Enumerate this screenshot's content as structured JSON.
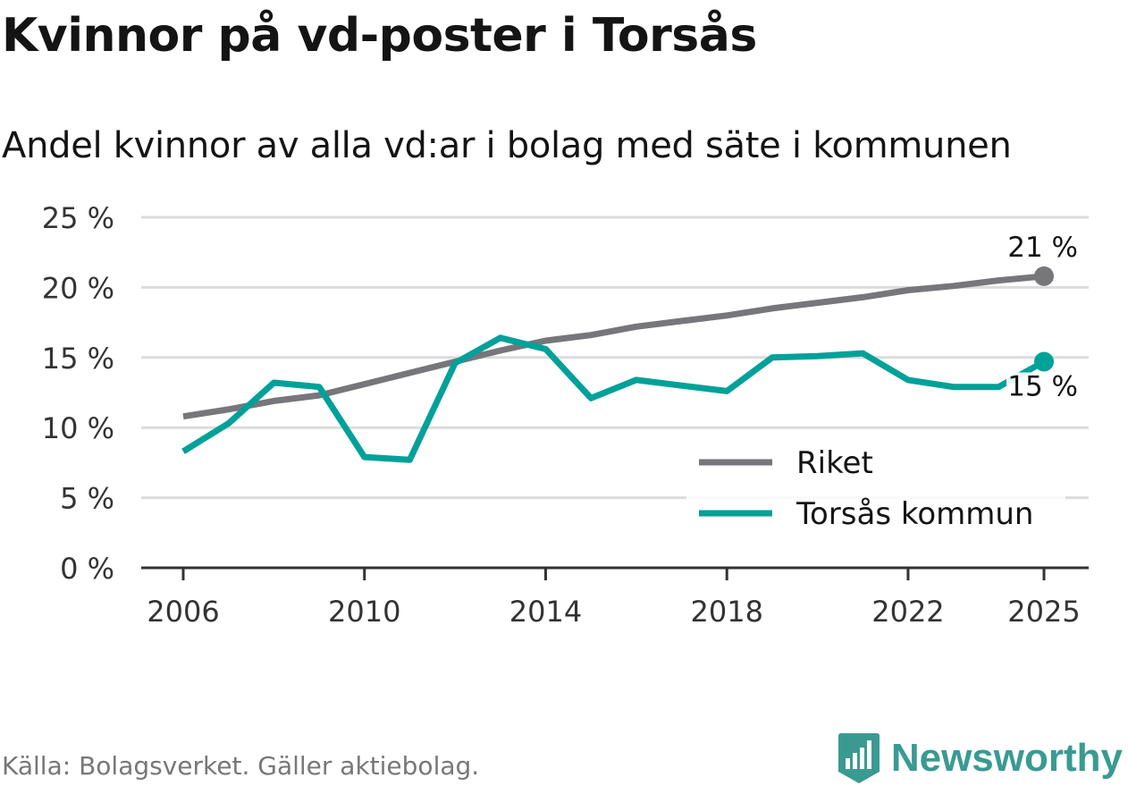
{
  "header": {
    "title": "Kvinnor på vd-poster i Torsås",
    "subtitle": "Andel kvinnor av alla vd:ar i bolag med säte i kommunen"
  },
  "footer": {
    "source": "Källa: Bolagsverket. Gäller aktiebolag.",
    "brand": "Newsworthy"
  },
  "colors": {
    "riket": "#76767b",
    "kommun": "#00a199",
    "grid": "#dcdcdc",
    "axis": "#333333",
    "brand": "#3a9a92"
  },
  "icons": {
    "logo": "bar-chart-badge-icon"
  },
  "chart_data": {
    "type": "line",
    "title": "Kvinnor på vd-poster i Torsås",
    "subtitle": "Andel kvinnor av alla vd:ar i bolag med säte i kommunen",
    "xlabel": "",
    "ylabel": "",
    "xlim": [
      2006,
      2025
    ],
    "ylim": [
      0,
      25
    ],
    "yticks": [
      0,
      5,
      10,
      15,
      20,
      25
    ],
    "ytick_labels": [
      "0 %",
      "5 %",
      "10 %",
      "15 %",
      "20 %",
      "25 %"
    ],
    "xticks": [
      2006,
      2010,
      2014,
      2018,
      2022,
      2025
    ],
    "xtick_labels": [
      "2006",
      "2010",
      "2014",
      "2018",
      "2022",
      "2025"
    ],
    "grid": true,
    "legend_position": "bottom-right",
    "x": [
      2006,
      2007,
      2008,
      2009,
      2010,
      2011,
      2012,
      2013,
      2014,
      2015,
      2016,
      2017,
      2018,
      2019,
      2020,
      2021,
      2022,
      2023,
      2024,
      2025
    ],
    "series": [
      {
        "name": "Riket",
        "color": "#76767b",
        "values": [
          10.8,
          11.3,
          11.9,
          12.3,
          13.1,
          13.9,
          14.7,
          15.5,
          16.2,
          16.6,
          17.2,
          17.6,
          18.0,
          18.5,
          18.9,
          19.3,
          19.8,
          20.1,
          20.5,
          20.8
        ],
        "end_label": "21 %"
      },
      {
        "name": "Torsås kommun",
        "color": "#00a199",
        "values": [
          8.3,
          10.3,
          13.2,
          12.9,
          7.9,
          7.7,
          14.6,
          16.4,
          15.6,
          12.1,
          13.4,
          13.0,
          12.6,
          15.0,
          15.1,
          15.3,
          13.4,
          12.9,
          12.9,
          14.7
        ],
        "end_label": "15 %"
      }
    ]
  }
}
